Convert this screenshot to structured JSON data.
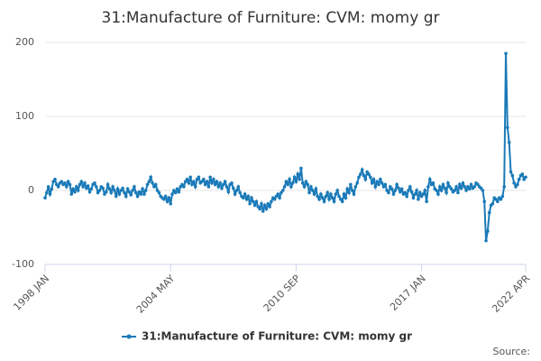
{
  "chart_data": {
    "type": "line",
    "title": "31:Manufacture of Furniture: CVM: momy gr",
    "categories": [
      "1998 JAN",
      null,
      null,
      null,
      null,
      null,
      null,
      null,
      null,
      null,
      null,
      null,
      null,
      null,
      null,
      null,
      null,
      null,
      null,
      null,
      null,
      null,
      null,
      null,
      null,
      null,
      null,
      null,
      null,
      null,
      null,
      null,
      null,
      null,
      null,
      null,
      null,
      null,
      null,
      null,
      null,
      null,
      null,
      null,
      null,
      null,
      null,
      null,
      null,
      null,
      null,
      null,
      null,
      null,
      null,
      null,
      null,
      null,
      null,
      null,
      null,
      null,
      null,
      null,
      null,
      null,
      null,
      null,
      null,
      null,
      null,
      null,
      null,
      null,
      null,
      null,
      "2004 MAY",
      null,
      null,
      null,
      null,
      null,
      null,
      null,
      null,
      null,
      null,
      null,
      null,
      null,
      null,
      null,
      null,
      null,
      null,
      null,
      null,
      null,
      null,
      null,
      null,
      null,
      null,
      null,
      null,
      null,
      null,
      null,
      null,
      null,
      null,
      null,
      null,
      null,
      null,
      null,
      null,
      null,
      null,
      null,
      null,
      null,
      null,
      null,
      null,
      null,
      null,
      null,
      null,
      null,
      null,
      null,
      null,
      null,
      null,
      null,
      null,
      null,
      null,
      null,
      null,
      null,
      null,
      null,
      null,
      null,
      null,
      null,
      null,
      null,
      null,
      null,
      "2010 SEP",
      null,
      null,
      null,
      null,
      null,
      null,
      null,
      null,
      null,
      null,
      null,
      null,
      null,
      null,
      null,
      null,
      null,
      null,
      null,
      null,
      null,
      null,
      null,
      null,
      null,
      null,
      null,
      null,
      null,
      null,
      null,
      null,
      null,
      null,
      null,
      null,
      null,
      null,
      null,
      null,
      null,
      null,
      null,
      null,
      null,
      null,
      null,
      null,
      null,
      null,
      null,
      null,
      null,
      null,
      null,
      null,
      null,
      null,
      null,
      null,
      null,
      null,
      null,
      null,
      null,
      null,
      null,
      null,
      null,
      null,
      null,
      null,
      null,
      null,
      null,
      "2017 JAN",
      null,
      null,
      null,
      null,
      null,
      null,
      null,
      null,
      null,
      null,
      null,
      null,
      null,
      null,
      null,
      null,
      null,
      null,
      null,
      null,
      null,
      null,
      null,
      null,
      null,
      null,
      null,
      null,
      null,
      null,
      null,
      null,
      null,
      null,
      null,
      null,
      null,
      null,
      null,
      null,
      null,
      null,
      null,
      null,
      null,
      null,
      null,
      null,
      null,
      null,
      null,
      null,
      null,
      null,
      null,
      null,
      null,
      null,
      null,
      null,
      null,
      null,
      "2022 APR"
    ],
    "series": [
      {
        "name": "31:Manufacture of Furniture: CVM: momy gr",
        "color": "#1a7ab8",
        "values": [
          -10,
          -3,
          5,
          -5,
          2,
          12,
          15,
          8,
          5,
          10,
          12,
          8,
          10,
          5,
          12,
          8,
          -5,
          2,
          -2,
          5,
          0,
          8,
          12,
          5,
          10,
          3,
          6,
          -2,
          2,
          8,
          10,
          5,
          -3,
          0,
          5,
          3,
          -5,
          -2,
          8,
          2,
          -3,
          5,
          0,
          -8,
          2,
          -5,
          0,
          3,
          -3,
          -8,
          2,
          -2,
          -6,
          0,
          5,
          -3,
          -8,
          -2,
          -5,
          2,
          -5,
          0,
          8,
          12,
          18,
          10,
          5,
          8,
          0,
          -3,
          -8,
          -10,
          -12,
          -8,
          -15,
          -10,
          -18,
          -5,
          0,
          -3,
          2,
          -2,
          5,
          8,
          5,
          12,
          15,
          10,
          18,
          8,
          12,
          5,
          15,
          18,
          10,
          12,
          15,
          8,
          12,
          5,
          18,
          10,
          15,
          8,
          12,
          5,
          10,
          3,
          8,
          12,
          5,
          -2,
          8,
          10,
          3,
          -5,
          0,
          5,
          -3,
          -8,
          -10,
          -5,
          -12,
          -8,
          -18,
          -10,
          -15,
          -20,
          -15,
          -22,
          -25,
          -18,
          -28,
          -20,
          -25,
          -18,
          -22,
          -15,
          -10,
          -12,
          -8,
          -5,
          -10,
          -3,
          0,
          5,
          12,
          8,
          15,
          5,
          10,
          18,
          12,
          22,
          15,
          30,
          10,
          5,
          12,
          8,
          -3,
          5,
          0,
          -5,
          2,
          -8,
          -12,
          -5,
          -10,
          -15,
          -8,
          -3,
          -12,
          -5,
          -10,
          -15,
          -5,
          0,
          -8,
          -12,
          -15,
          -5,
          -10,
          2,
          -3,
          8,
          0,
          -5,
          5,
          10,
          18,
          22,
          28,
          20,
          15,
          25,
          22,
          18,
          10,
          15,
          5,
          12,
          8,
          15,
          10,
          5,
          8,
          0,
          -3,
          5,
          2,
          -5,
          0,
          8,
          3,
          -2,
          2,
          -5,
          -3,
          -8,
          0,
          5,
          -2,
          -10,
          -5,
          0,
          -12,
          -3,
          -8,
          -5,
          0,
          -15,
          5,
          15,
          8,
          10,
          2,
          0,
          -5,
          5,
          0,
          8,
          3,
          -3,
          10,
          5,
          2,
          -2,
          0,
          5,
          -3,
          8,
          3,
          10,
          5,
          0,
          5,
          2,
          8,
          3,
          5,
          10,
          8,
          5,
          3,
          0,
          -15,
          -68,
          -55,
          -30,
          -20,
          -18,
          -10,
          -12,
          -15,
          -10,
          -12,
          -8,
          5,
          185,
          85,
          65,
          25,
          20,
          10,
          5,
          8,
          15,
          20,
          22,
          15,
          18
        ]
      }
    ],
    "ylim": [
      -100,
      200
    ],
    "yticks": [
      -100,
      0,
      100,
      200
    ],
    "grid": true,
    "source": "Source:"
  }
}
